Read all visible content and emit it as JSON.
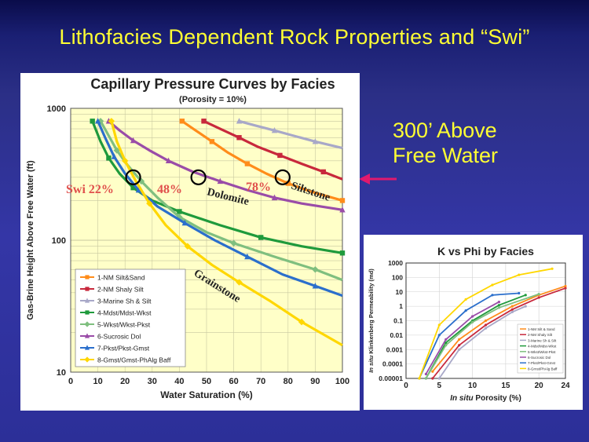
{
  "slide": {
    "title": "Lithofacies Dependent Rock Properties and “Swi”",
    "callout_line1": "300’ Above",
    "callout_line2": "Free Water",
    "accent_color": "#ffff33",
    "arrow_color": "#e0196e"
  },
  "chart_data": [
    {
      "type": "line",
      "title": "Capillary Pressure Curves by Facies",
      "subtitle": "(Porosity = 10%)",
      "xlabel": "Water Saturation (%)",
      "ylabel": "Gas-Brine Height Above Free Water (ft)",
      "xlim": [
        0,
        100
      ],
      "ylim": [
        10,
        1000
      ],
      "y_scale": "log",
      "x_ticks": [
        "0",
        "10",
        "20",
        "30",
        "40",
        "50",
        "60",
        "70",
        "80",
        "90",
        "100"
      ],
      "y_ticks": [
        "1000",
        "100",
        "10"
      ],
      "grid": true,
      "legend_position": "bottom-left",
      "annotations": {
        "swi": "Swi 22%",
        "p48": "48%",
        "p78": "78%",
        "dolomite": "Dolomite",
        "siltstone": "Siltstone",
        "grainstone": "Grainstone"
      },
      "highlight_circles": [
        [
          23,
          300
        ],
        [
          47,
          300
        ],
        [
          78,
          300
        ]
      ],
      "series": [
        {
          "name": "1-NM Silt&Sand",
          "color": "#ff8c1a",
          "marker": "square",
          "x": [
            41,
            46,
            52,
            58,
            65,
            72,
            80,
            88,
            100
          ],
          "y": [
            800,
            680,
            560,
            460,
            380,
            320,
            270,
            235,
            200
          ]
        },
        {
          "name": "2-NM Shaly Silt",
          "color": "#c8283c",
          "marker": "square",
          "x": [
            49,
            55,
            62,
            69,
            77,
            85,
            93,
            100
          ],
          "y": [
            800,
            700,
            600,
            510,
            440,
            380,
            330,
            290
          ]
        },
        {
          "name": "3-Marine Sh & Silt",
          "color": "#a8a8c8",
          "marker": "triangle",
          "x": [
            62,
            68,
            75,
            82,
            90,
            100
          ],
          "y": [
            800,
            740,
            680,
            620,
            560,
            500
          ]
        },
        {
          "name": "4-Mdst/Mdst-Wkst",
          "color": "#1f9a3c",
          "marker": "square",
          "x": [
            8,
            11,
            14,
            18,
            23,
            30,
            40,
            55,
            70,
            85,
            100
          ],
          "y": [
            800,
            560,
            420,
            320,
            250,
            200,
            165,
            130,
            105,
            90,
            80
          ]
        },
        {
          "name": "5-Wkst/Wkst-Pkst",
          "color": "#7fbf7f",
          "marker": "diamond",
          "x": [
            11,
            14,
            17,
            21,
            26,
            32,
            40,
            50,
            60,
            75,
            90,
            100
          ],
          "y": [
            800,
            620,
            480,
            370,
            280,
            210,
            150,
            115,
            95,
            75,
            60,
            50
          ]
        },
        {
          "name": "6-Sucrosic Dol",
          "color": "#9a4ca8",
          "marker": "triangle",
          "x": [
            14,
            18,
            23,
            29,
            36,
            45,
            55,
            65,
            75,
            85,
            100
          ],
          "y": [
            800,
            680,
            570,
            480,
            400,
            330,
            280,
            240,
            210,
            190,
            170
          ]
        },
        {
          "name": "7-Pkst/Pkst-Gmst",
          "color": "#2b6fcc",
          "marker": "triangle",
          "x": [
            10,
            13,
            16,
            20,
            25,
            32,
            42,
            53,
            65,
            78,
            90,
            100
          ],
          "y": [
            800,
            580,
            430,
            320,
            240,
            180,
            135,
            100,
            75,
            55,
            45,
            38
          ]
        },
        {
          "name": "8-Gmst/Gmst-PhAlg Baff",
          "color": "#ffd700",
          "marker": "diamond",
          "x": [
            15,
            17,
            20,
            24,
            29,
            35,
            43,
            52,
            62,
            73,
            85,
            100
          ],
          "y": [
            800,
            560,
            400,
            280,
            190,
            130,
            90,
            65,
            48,
            35,
            24,
            16
          ]
        }
      ]
    },
    {
      "type": "line",
      "title": "K vs Phi by Facies",
      "xlabel_italic": "In situ",
      "xlabel": " Porosity (%)",
      "ylabel_italic": "In situ",
      "ylabel": " Klinkenberg Permeability (md)",
      "xlim": [
        0,
        24
      ],
      "ylim": [
        1e-05,
        1000
      ],
      "y_scale": "log",
      "x_ticks": [
        "0",
        "5",
        "10",
        "15",
        "20",
        "24"
      ],
      "y_ticks": [
        "1000",
        "100",
        "10",
        "1",
        "0.1",
        "0.01",
        "0.001",
        "0.0001",
        "0.00001"
      ],
      "grid": true,
      "legend_position": "bottom-right",
      "series": [
        {
          "name": "1-NM Silt & Sand",
          "color": "#ff8c1a",
          "x": [
            4,
            8,
            12,
            16,
            20,
            24
          ],
          "y": [
            3e-05,
            0.005,
            0.1,
            1,
            6,
            25
          ]
        },
        {
          "name": "2-NM Shaly Silt",
          "color": "#c8283c",
          "x": [
            4,
            8,
            12,
            16,
            20,
            24
          ],
          "y": [
            1e-05,
            0.002,
            0.05,
            0.6,
            4,
            18
          ]
        },
        {
          "name": "3-Marine Sh & Silt",
          "color": "#a8a8c8",
          "x": [
            5,
            8,
            12,
            16,
            18
          ],
          "y": [
            1e-05,
            0.001,
            0.03,
            0.4,
            1
          ]
        },
        {
          "name": "4-Mdst/Mdst-Wkst",
          "color": "#1f9a3c",
          "x": [
            3,
            6,
            10,
            14,
            18
          ],
          "y": [
            1e-05,
            0.003,
            0.1,
            1.2,
            6
          ]
        },
        {
          "name": "5-Wkst/Wkst-Pkst",
          "color": "#7fbf7f",
          "x": [
            3,
            6,
            10,
            14,
            20
          ],
          "y": [
            1e-05,
            0.002,
            0.08,
            0.8,
            7
          ]
        },
        {
          "name": "6-Sucrosic Dol",
          "color": "#9a4ca8",
          "x": [
            3,
            6,
            10,
            14
          ],
          "y": [
            2e-05,
            0.005,
            0.2,
            2
          ]
        },
        {
          "name": "7-Pkst/Pkst-Gmst",
          "color": "#2b6fcc",
          "x": [
            2,
            5,
            9,
            13,
            17
          ],
          "y": [
            1e-05,
            0.01,
            0.5,
            6,
            8
          ]
        },
        {
          "name": "8-Grnst/PhAlg Baff",
          "color": "#ffd700",
          "x": [
            2,
            5,
            9,
            13,
            17,
            22
          ],
          "y": [
            1e-05,
            0.05,
            3,
            30,
            150,
            400
          ]
        }
      ]
    }
  ]
}
